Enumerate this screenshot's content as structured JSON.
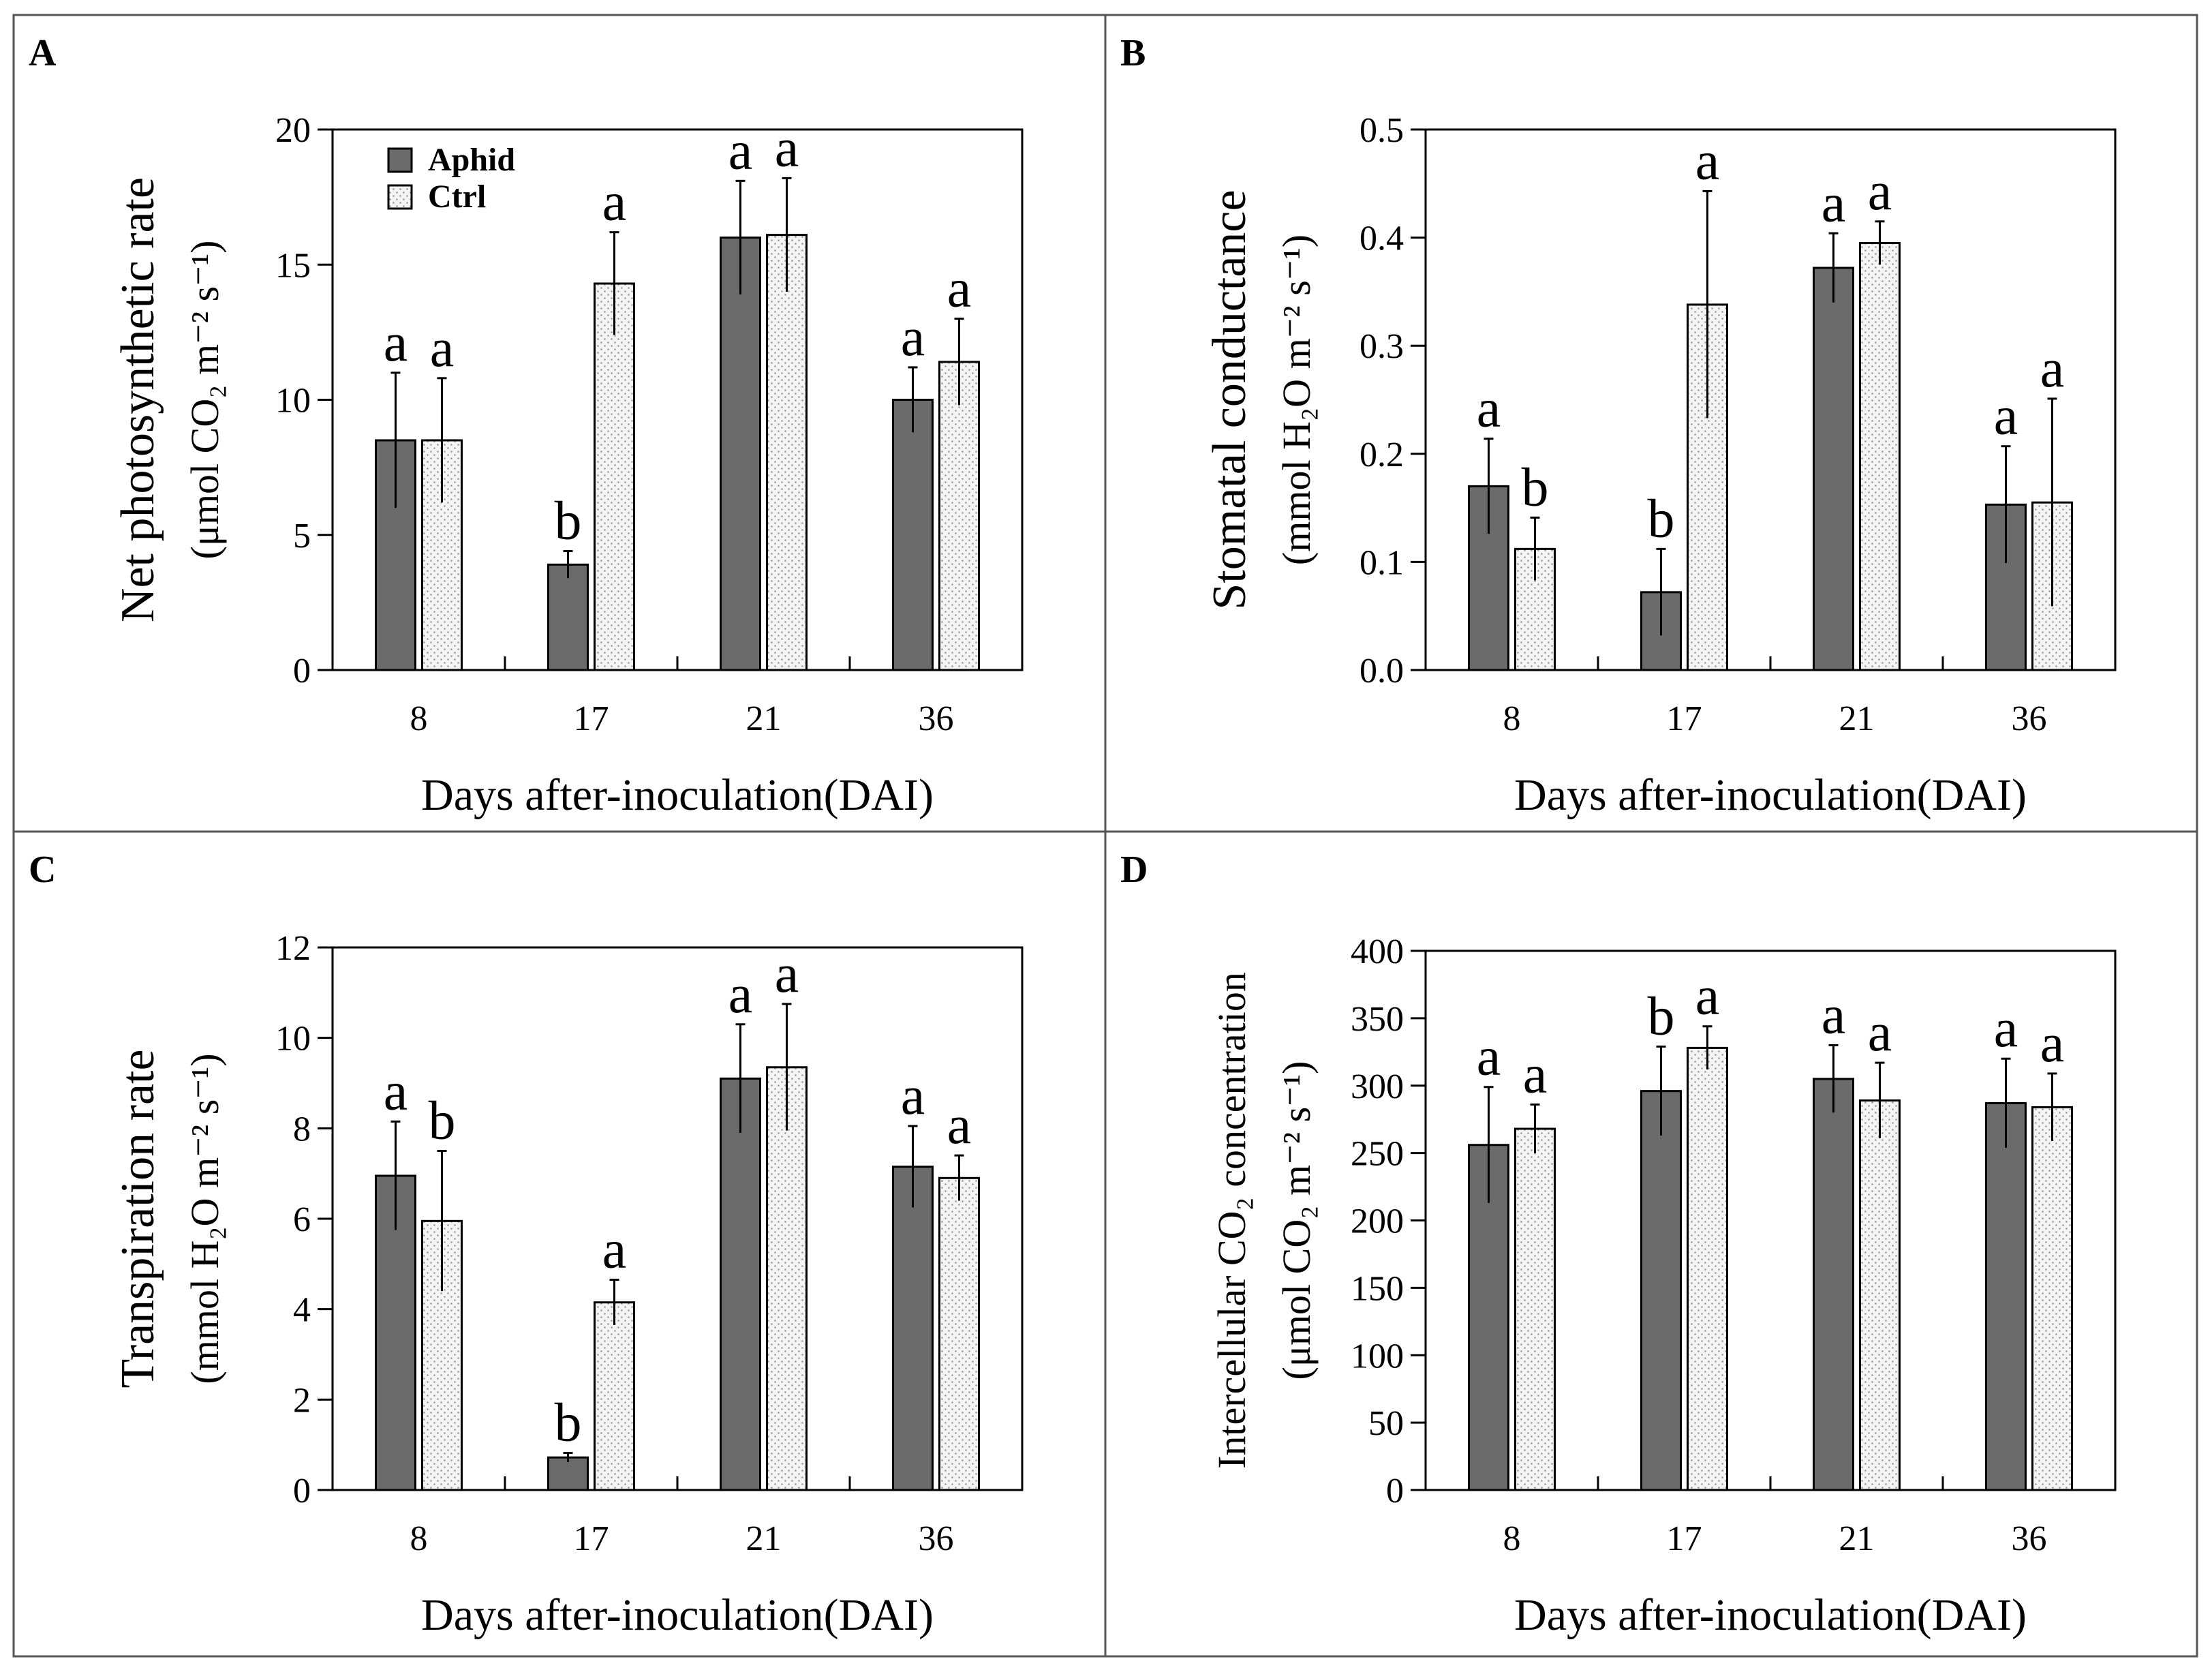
{
  "figure": {
    "legend": [
      {
        "key": "aphid",
        "label": "Aphid"
      },
      {
        "key": "ctrl",
        "label": "Ctrl"
      }
    ],
    "colors": {
      "aphid": "#6b6b6b",
      "ctrl_background": "#f4f4f4",
      "ctrl_dots": "#9a9a9a"
    }
  },
  "chart_data": [
    {
      "type": "bar",
      "panel": "A",
      "ylabel_lines": [
        "Net photosynthetic rate",
        "(μmol CO₂ m⁻² s⁻¹)"
      ],
      "xlabel": "Days after-inoculation(DAI)",
      "categories": [
        "8",
        "17",
        "21",
        "36"
      ],
      "ylim": [
        0,
        20
      ],
      "yticks": [
        0,
        5,
        10,
        15,
        20
      ],
      "ytick_labels": [
        "0",
        "5",
        "10",
        "15",
        "20"
      ],
      "series": [
        {
          "name": "Aphid",
          "values": [
            8.5,
            3.9,
            16.0,
            10.0
          ],
          "errors": [
            2.5,
            0.5,
            2.1,
            1.2
          ],
          "letters": [
            "a",
            "b",
            "a",
            "a"
          ]
        },
        {
          "name": "Ctrl",
          "values": [
            8.5,
            14.3,
            16.1,
            11.4
          ],
          "errors": [
            2.3,
            1.9,
            2.1,
            1.6
          ],
          "letters": [
            "a",
            "a",
            "a",
            "a"
          ]
        }
      ],
      "show_legend": true
    },
    {
      "type": "bar",
      "panel": "B",
      "ylabel_lines": [
        "Stomatal conductance",
        "(mmol H₂O m⁻² s⁻¹)"
      ],
      "xlabel": "Days after-inoculation(DAI)",
      "categories": [
        "8",
        "17",
        "21",
        "36"
      ],
      "ylim": [
        0,
        0.5
      ],
      "yticks": [
        0,
        0.1,
        0.2,
        0.3,
        0.4,
        0.5
      ],
      "ytick_labels": [
        "0.0",
        "0.1",
        "0.2",
        "0.3",
        "0.4",
        "0.5"
      ],
      "series": [
        {
          "name": "Aphid",
          "values": [
            0.17,
            0.072,
            0.372,
            0.153
          ],
          "errors": [
            0.044,
            0.04,
            0.032,
            0.054
          ],
          "letters": [
            "a",
            "b",
            "a",
            "a"
          ]
        },
        {
          "name": "Ctrl",
          "values": [
            0.112,
            0.338,
            0.395,
            0.155
          ],
          "errors": [
            0.029,
            0.105,
            0.02,
            0.096
          ],
          "letters": [
            "b",
            "a",
            "a",
            "a"
          ]
        }
      ],
      "show_legend": false
    },
    {
      "type": "bar",
      "panel": "C",
      "ylabel_lines": [
        "Transpiration rate",
        "(mmol H₂O m⁻² s⁻¹)"
      ],
      "xlabel": "Days after-inoculation(DAI)",
      "categories": [
        "8",
        "17",
        "21",
        "36"
      ],
      "ylim": [
        0,
        12
      ],
      "yticks": [
        0,
        2,
        4,
        6,
        8,
        10,
        12
      ],
      "ytick_labels": [
        "0",
        "2",
        "4",
        "6",
        "8",
        "10",
        "12"
      ],
      "series": [
        {
          "name": "Aphid",
          "values": [
            6.95,
            0.72,
            9.1,
            7.15
          ],
          "errors": [
            1.2,
            0.1,
            1.2,
            0.9
          ],
          "letters": [
            "a",
            "b",
            "a",
            "a"
          ]
        },
        {
          "name": "Ctrl",
          "values": [
            5.95,
            4.15,
            9.35,
            6.9
          ],
          "errors": [
            1.55,
            0.5,
            1.4,
            0.5
          ],
          "letters": [
            "b",
            "a",
            "a",
            "a"
          ]
        }
      ],
      "show_legend": false
    },
    {
      "type": "bar",
      "panel": "D",
      "ylabel_lines": [
        "Intercellular CO₂ concentration",
        "(μmol CO₂ m⁻² s⁻¹)"
      ],
      "xlabel": "Days after-inoculation(DAI)",
      "categories": [
        "8",
        "17",
        "21",
        "36"
      ],
      "ylim": [
        0,
        400
      ],
      "yticks": [
        0,
        50,
        100,
        150,
        200,
        250,
        300,
        350,
        400
      ],
      "ytick_labels": [
        "0",
        "50",
        "100",
        "150",
        "200",
        "250",
        "300",
        "350",
        "400"
      ],
      "series": [
        {
          "name": "Aphid",
          "values": [
            256,
            296,
            305,
            287
          ],
          "errors": [
            43,
            33,
            25,
            33
          ],
          "letters": [
            "a",
            "b",
            "a",
            "a"
          ]
        },
        {
          "name": "Ctrl",
          "values": [
            268,
            328,
            289,
            284
          ],
          "errors": [
            18,
            16,
            28,
            25
          ],
          "letters": [
            "a",
            "a",
            "a",
            "a"
          ]
        }
      ],
      "show_legend": false
    }
  ]
}
